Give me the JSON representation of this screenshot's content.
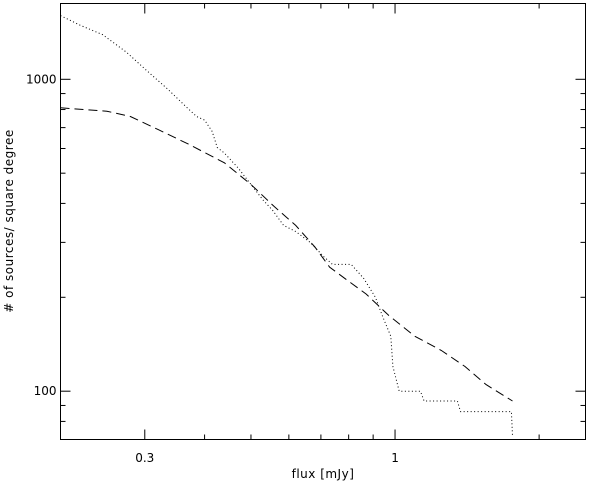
{
  "chart_data": {
    "type": "line",
    "title": "",
    "xlabel": "flux [mJy]",
    "ylabel": "# of sources/ square degree",
    "x_scale": "log",
    "y_scale": "log",
    "xlim": [
      0.2,
      2.5
    ],
    "ylim": [
      70,
      1750
    ],
    "x_ticks": [
      {
        "value": 0.3,
        "label": "0.3"
      },
      {
        "value": 1,
        "label": "1"
      }
    ],
    "x_minor_ticks": [
      0.2,
      0.4,
      0.5,
      0.6,
      0.7,
      0.8,
      0.9,
      2
    ],
    "y_ticks": [
      {
        "value": 100,
        "label": "100"
      },
      {
        "value": 1000,
        "label": "1000"
      }
    ],
    "y_minor_ticks": [
      80,
      90,
      200,
      300,
      400,
      500,
      600,
      700,
      800,
      900
    ],
    "grid": false,
    "series": [
      {
        "style": "dotted",
        "points": [
          [
            0.2,
            1600
          ],
          [
            0.22,
            1490
          ],
          [
            0.245,
            1390
          ],
          [
            0.275,
            1220
          ],
          [
            0.3,
            1080
          ],
          [
            0.335,
            930
          ],
          [
            0.365,
            820
          ],
          [
            0.385,
            760
          ],
          [
            0.4,
            740
          ],
          [
            0.415,
            680
          ],
          [
            0.425,
            605
          ],
          [
            0.44,
            580
          ],
          [
            0.47,
            520
          ],
          [
            0.5,
            460
          ],
          [
            0.53,
            410
          ],
          [
            0.555,
            380
          ],
          [
            0.585,
            340
          ],
          [
            0.62,
            325
          ],
          [
            0.665,
            300
          ],
          [
            0.71,
            270
          ],
          [
            0.74,
            255
          ],
          [
            0.81,
            255
          ],
          [
            0.86,
            230
          ],
          [
            0.91,
            200
          ],
          [
            0.94,
            175
          ],
          [
            0.98,
            150
          ],
          [
            0.99,
            120
          ],
          [
            1.02,
            100
          ],
          [
            1.13,
            100
          ],
          [
            1.15,
            93
          ],
          [
            1.35,
            93
          ],
          [
            1.37,
            86
          ],
          [
            1.75,
            86
          ],
          [
            1.76,
            72
          ]
        ]
      },
      {
        "style": "dashed",
        "points": [
          [
            0.2,
            810
          ],
          [
            0.25,
            790
          ],
          [
            0.28,
            760
          ],
          [
            0.32,
            690
          ],
          [
            0.37,
            620
          ],
          [
            0.44,
            540
          ],
          [
            0.5,
            460
          ],
          [
            0.56,
            390
          ],
          [
            0.62,
            340
          ],
          [
            0.68,
            290
          ],
          [
            0.73,
            250
          ],
          [
            0.8,
            225
          ],
          [
            0.87,
            205
          ],
          [
            0.97,
            175
          ],
          [
            1.1,
            150
          ],
          [
            1.25,
            135
          ],
          [
            1.4,
            120
          ],
          [
            1.55,
            105
          ],
          [
            1.76,
            93
          ]
        ]
      }
    ]
  }
}
